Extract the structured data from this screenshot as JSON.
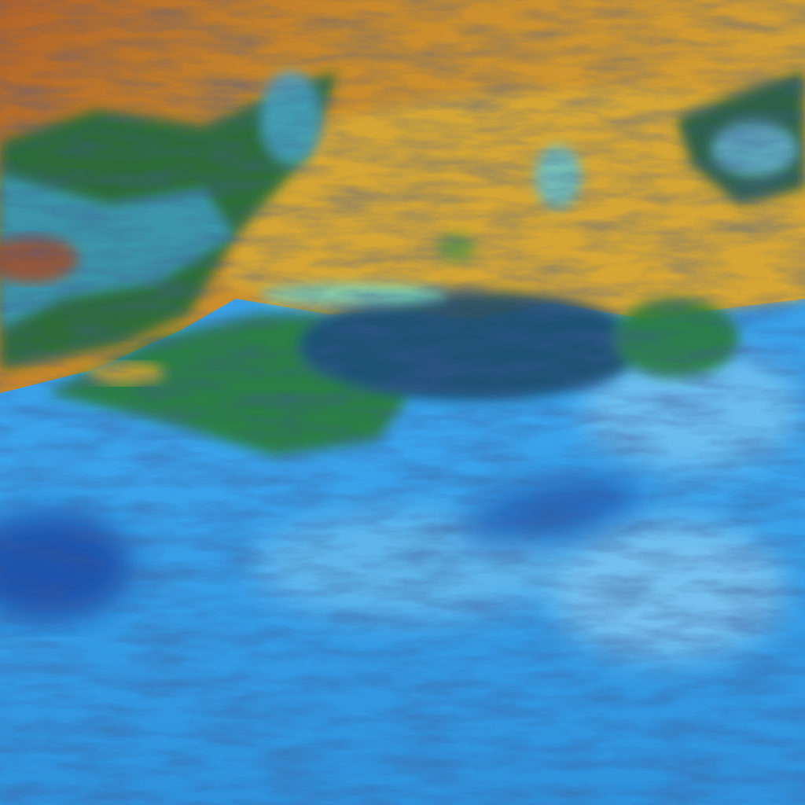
{
  "image": {
    "kind": "false-color satellite imagery",
    "colors": {
      "ocean_cloud_blue": "#3aa0e8",
      "deep_blue": "#1a5fb8",
      "light_cloud": "#8fd0f0",
      "desert_orange": "#c8902a",
      "sand_yellow": "#d8a838",
      "red_brown": "#a8602a",
      "vegetation_green": "#2a7a3a",
      "cyan_cloud": "#5fd8d0"
    }
  }
}
